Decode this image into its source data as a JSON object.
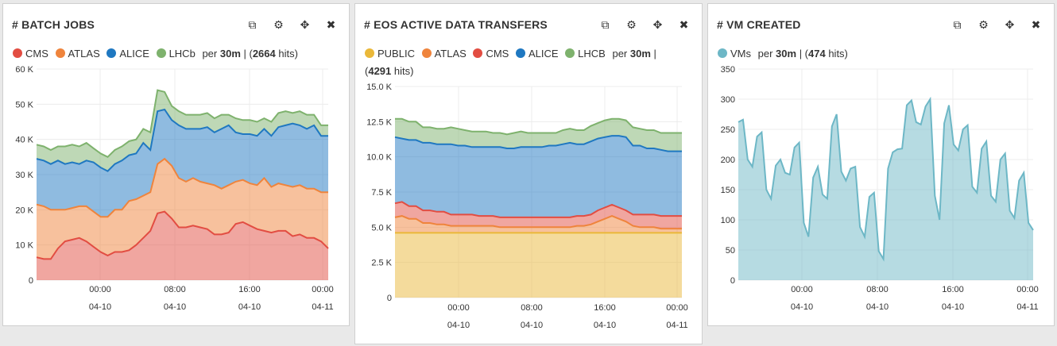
{
  "panels": [
    {
      "title": "# BATCH JOBS",
      "legend_prefix": "",
      "legend_items": [
        "CMS",
        "ATLAS",
        "ALICE",
        "LHCb"
      ],
      "per_text": "per",
      "interval": "30m",
      "sep": " | (",
      "hits": "2664",
      "hits_suffix": " hits)"
    },
    {
      "title": "# EOS ACTIVE DATA TRANSFERS",
      "legend_items": [
        "PUBLIC",
        "ATLAS",
        "CMS",
        "ALICE",
        "LHCB"
      ],
      "per_text": "per",
      "interval": "30m",
      "sep": " |",
      "hits_prefix": "(",
      "hits": "4291",
      "hits_suffix": " hits)"
    },
    {
      "title": "# VM CREATED",
      "legend_items": [
        "VMs"
      ],
      "per_text": "per",
      "interval": "30m",
      "sep": " | (",
      "hits": "474",
      "hits_suffix": " hits)"
    }
  ],
  "icons": [
    "copy-icon",
    "gear-icon",
    "move-icon",
    "close-icon"
  ],
  "colors": {
    "CMS": "#e24d42",
    "ATLAS": "#ef843c",
    "ALICE": "#1f78c1",
    "LHCb": "#7eb26d",
    "PUBLIC": "#eab839",
    "VMs": "#6db7c6"
  },
  "chart_data": [
    {
      "type": "area",
      "stacked": true,
      "title": "# BATCH JOBS",
      "x_ticks": [
        {
          "time": "00:00",
          "date": "04-10"
        },
        {
          "time": "08:00",
          "date": "04-10"
        },
        {
          "time": "16:00",
          "date": "04-10"
        },
        {
          "time": "00:00",
          "date": "04-11"
        }
      ],
      "y_ticks": [
        "0",
        "10 K",
        "20 K",
        "30 K",
        "40 K",
        "50 K",
        "60 K"
      ],
      "ylim": [
        0,
        60000
      ],
      "grid": true,
      "series": [
        {
          "name": "CMS",
          "values": [
            6.5,
            6,
            6,
            9,
            11,
            11.5,
            12,
            11,
            9.5,
            8,
            7,
            8,
            8,
            8.5,
            10,
            12,
            14,
            19,
            19.5,
            17.5,
            15,
            15,
            15.5,
            15,
            14.5,
            13,
            13,
            13.5,
            16,
            16.5,
            15.5,
            14.5,
            14,
            13.5,
            14,
            14,
            12.5,
            13,
            12,
            12,
            11,
            9
          ]
        },
        {
          "name": "ATLAS",
          "values": [
            15,
            15,
            14,
            11,
            9,
            9,
            9,
            10,
            10,
            10,
            11,
            12,
            12,
            14,
            13,
            12,
            11,
            14,
            15,
            15,
            14,
            13,
            13.5,
            13,
            13,
            14,
            13,
            13.5,
            12,
            12,
            12,
            12.5,
            15,
            13,
            13.5,
            13,
            14,
            14,
            14,
            14,
            14,
            16
          ]
        },
        {
          "name": "ALICE",
          "values": [
            13,
            13,
            13,
            14,
            13,
            13,
            12,
            13,
            14,
            14,
            13,
            13,
            14,
            13,
            13,
            15,
            12,
            15,
            14,
            13,
            15,
            15,
            14,
            15,
            16,
            15,
            17,
            17,
            14,
            13,
            14,
            14,
            14,
            14.5,
            16,
            17,
            18,
            17,
            17,
            18,
            16,
            16
          ]
        },
        {
          "name": "LHCb",
          "values": [
            4,
            4,
            4,
            4,
            5,
            5,
            5,
            5,
            4,
            4,
            4,
            4,
            4,
            4,
            4,
            4,
            5,
            6,
            5,
            4,
            4,
            4,
            4,
            4,
            4,
            4,
            4,
            3,
            4,
            4,
            4,
            4,
            3,
            4,
            4,
            4,
            3,
            4,
            4,
            3,
            3,
            3
          ]
        }
      ]
    },
    {
      "type": "area",
      "stacked": true,
      "title": "# EOS ACTIVE DATA TRANSFERS",
      "x_ticks": [
        {
          "time": "00:00",
          "date": "04-10"
        },
        {
          "time": "08:00",
          "date": "04-10"
        },
        {
          "time": "16:00",
          "date": "04-10"
        },
        {
          "time": "00:00",
          "date": "04-11"
        }
      ],
      "y_ticks": [
        "0",
        "2.5 K",
        "5.0 K",
        "7.5 K",
        "10.0 K",
        "12.5 K",
        "15.0 K"
      ],
      "ylim": [
        0,
        15000
      ],
      "grid": true,
      "series": [
        {
          "name": "PUBLIC",
          "values": [
            4.6,
            4.6,
            4.6,
            4.6,
            4.6,
            4.6,
            4.6,
            4.6,
            4.6,
            4.6,
            4.6,
            4.6,
            4.6,
            4.6,
            4.6,
            4.6,
            4.6,
            4.6,
            4.6,
            4.6,
            4.6,
            4.6,
            4.6,
            4.6,
            4.6,
            4.6,
            4.6,
            4.6,
            4.6,
            4.6,
            4.6,
            4.6,
            4.6,
            4.6,
            4.6,
            4.6,
            4.6,
            4.6,
            4.6,
            4.6,
            4.6,
            4.6
          ]
        },
        {
          "name": "ATLAS",
          "values": [
            1.1,
            1.2,
            1.0,
            1.0,
            0.7,
            0.7,
            0.6,
            0.6,
            0.5,
            0.5,
            0.5,
            0.5,
            0.5,
            0.5,
            0.5,
            0.4,
            0.4,
            0.4,
            0.4,
            0.4,
            0.4,
            0.4,
            0.4,
            0.4,
            0.4,
            0.4,
            0.5,
            0.5,
            0.6,
            0.8,
            1.0,
            1.2,
            1.0,
            0.8,
            0.5,
            0.4,
            0.4,
            0.4,
            0.3,
            0.3,
            0.3,
            0.3
          ]
        },
        {
          "name": "CMS",
          "values": [
            1.0,
            1.0,
            0.9,
            0.9,
            0.9,
            0.9,
            0.9,
            0.9,
            0.8,
            0.8,
            0.8,
            0.8,
            0.7,
            0.7,
            0.7,
            0.7,
            0.7,
            0.7,
            0.7,
            0.7,
            0.7,
            0.7,
            0.7,
            0.7,
            0.7,
            0.7,
            0.7,
            0.7,
            0.7,
            0.8,
            0.8,
            0.8,
            0.8,
            0.8,
            0.8,
            0.9,
            0.9,
            0.9,
            0.9,
            0.9,
            0.9,
            0.9
          ]
        },
        {
          "name": "ALICE",
          "values": [
            4.7,
            4.5,
            4.7,
            4.7,
            4.8,
            4.8,
            4.8,
            4.8,
            5.0,
            4.9,
            4.9,
            4.8,
            4.9,
            4.9,
            4.9,
            5.0,
            4.9,
            4.9,
            5.0,
            5.0,
            5.0,
            5.0,
            5.1,
            5.1,
            5.2,
            5.3,
            5.1,
            5.1,
            5.2,
            5.1,
            5.0,
            4.9,
            5.1,
            5.2,
            4.9,
            4.9,
            4.7,
            4.7,
            4.7,
            4.6,
            4.6,
            4.6
          ]
        },
        {
          "name": "LHCB",
          "values": [
            1.3,
            1.4,
            1.3,
            1.3,
            1.1,
            1.1,
            1.1,
            1.1,
            1.2,
            1.2,
            1.1,
            1.1,
            1.1,
            1.1,
            1.0,
            1.0,
            1.0,
            1.1,
            1.1,
            1.0,
            1.0,
            1.0,
            0.9,
            0.9,
            1.0,
            1.0,
            1.0,
            1.0,
            1.1,
            1.1,
            1.2,
            1.2,
            1.2,
            1.2,
            1.3,
            1.2,
            1.3,
            1.3,
            1.2,
            1.3,
            1.3,
            1.3
          ]
        }
      ]
    },
    {
      "type": "area",
      "stacked": false,
      "title": "# VM CREATED",
      "x_ticks": [
        {
          "time": "00:00",
          "date": "04-10"
        },
        {
          "time": "08:00",
          "date": "04-10"
        },
        {
          "time": "16:00",
          "date": "04-10"
        },
        {
          "time": "00:00",
          "date": "04-11"
        }
      ],
      "y_ticks": [
        "0",
        "50",
        "100",
        "150",
        "200",
        "250",
        "300",
        "350"
      ],
      "ylim": [
        0,
        350
      ],
      "grid": true,
      "series": [
        {
          "name": "VMs",
          "values": [
            262,
            266,
            200,
            188,
            238,
            245,
            150,
            135,
            190,
            200,
            178,
            175,
            220,
            228,
            95,
            72,
            170,
            188,
            142,
            135,
            255,
            275,
            180,
            165,
            185,
            188,
            88,
            72,
            138,
            145,
            48,
            35,
            185,
            212,
            217,
            218,
            290,
            298,
            262,
            258,
            288,
            300,
            140,
            100,
            260,
            290,
            225,
            215,
            250,
            257,
            155,
            145,
            218,
            230,
            140,
            130,
            200,
            210,
            115,
            103,
            165,
            178,
            95,
            83
          ]
        }
      ]
    }
  ]
}
